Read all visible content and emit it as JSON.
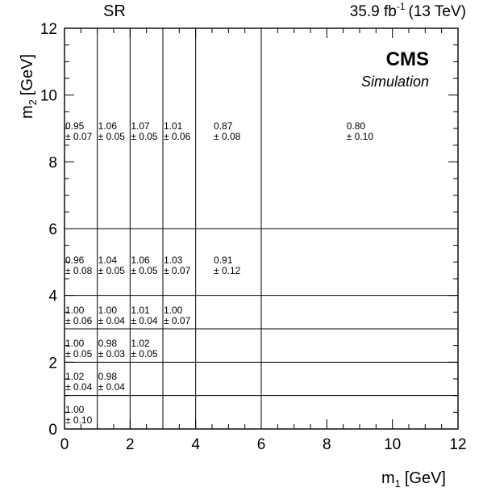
{
  "header": {
    "left_label": "SR",
    "lumi_value": "35.9 fb",
    "lumi_exp": "-1",
    "energy": "(13 TeV)"
  },
  "branding": {
    "experiment": "CMS",
    "tag": "Simulation"
  },
  "chart_data": {
    "type": "heatmap",
    "title": "",
    "xlabel_main": "m",
    "xlabel_sub": "1",
    "xlabel_unit": "[GeV]",
    "ylabel_main": "m",
    "ylabel_sub": "2",
    "ylabel_unit": "[GeV]",
    "xlim": [
      0,
      12
    ],
    "ylim": [
      0,
      12
    ],
    "x_ticks": [
      "0",
      "2",
      "4",
      "6",
      "8",
      "10",
      "12"
    ],
    "y_ticks": [
      "0",
      "2",
      "4",
      "6",
      "8",
      "10",
      "12"
    ],
    "x_bin_edges": [
      0,
      1,
      2,
      3,
      4,
      6,
      12
    ],
    "y_bin_edges": [
      0,
      1,
      2,
      3,
      4,
      6,
      12
    ],
    "cells": [
      {
        "x": [
          0,
          1
        ],
        "y": [
          0,
          1
        ],
        "value": "1.00",
        "error": "± 0.10"
      },
      {
        "x": [
          0,
          1
        ],
        "y": [
          1,
          2
        ],
        "value": "1.02",
        "error": "± 0.04"
      },
      {
        "x": [
          1,
          2
        ],
        "y": [
          1,
          2
        ],
        "value": "0.98",
        "error": "± 0.04"
      },
      {
        "x": [
          0,
          1
        ],
        "y": [
          2,
          3
        ],
        "value": "1.00",
        "error": "± 0.05"
      },
      {
        "x": [
          1,
          2
        ],
        "y": [
          2,
          3
        ],
        "value": "0.98",
        "error": "± 0.03"
      },
      {
        "x": [
          2,
          3
        ],
        "y": [
          2,
          3
        ],
        "value": "1.02",
        "error": "± 0.05"
      },
      {
        "x": [
          0,
          1
        ],
        "y": [
          3,
          4
        ],
        "value": "1.00",
        "error": "± 0.06"
      },
      {
        "x": [
          1,
          2
        ],
        "y": [
          3,
          4
        ],
        "value": "1.00",
        "error": "± 0.04"
      },
      {
        "x": [
          2,
          3
        ],
        "y": [
          3,
          4
        ],
        "value": "1.01",
        "error": "± 0.04"
      },
      {
        "x": [
          3,
          4
        ],
        "y": [
          3,
          4
        ],
        "value": "1.00",
        "error": "± 0.07"
      },
      {
        "x": [
          0,
          1
        ],
        "y": [
          4,
          6
        ],
        "value": "0.96",
        "error": "± 0.08"
      },
      {
        "x": [
          1,
          2
        ],
        "y": [
          4,
          6
        ],
        "value": "1.04",
        "error": "± 0.05"
      },
      {
        "x": [
          2,
          3
        ],
        "y": [
          4,
          6
        ],
        "value": "1.06",
        "error": "± 0.05"
      },
      {
        "x": [
          3,
          4
        ],
        "y": [
          4,
          6
        ],
        "value": "1.03",
        "error": "± 0.07"
      },
      {
        "x": [
          4,
          6
        ],
        "y": [
          4,
          6
        ],
        "value": "0.91",
        "error": "± 0.12"
      },
      {
        "x": [
          0,
          1
        ],
        "y": [
          6,
          12
        ],
        "value": "0.95",
        "error": "± 0.07"
      },
      {
        "x": [
          1,
          2
        ],
        "y": [
          6,
          12
        ],
        "value": "1.06",
        "error": "± 0.05"
      },
      {
        "x": [
          2,
          3
        ],
        "y": [
          6,
          12
        ],
        "value": "1.07",
        "error": "± 0.05"
      },
      {
        "x": [
          3,
          4
        ],
        "y": [
          6,
          12
        ],
        "value": "1.01",
        "error": "± 0.06"
      },
      {
        "x": [
          4,
          6
        ],
        "y": [
          6,
          12
        ],
        "value": "0.87",
        "error": "± 0.08"
      },
      {
        "x": [
          6,
          12
        ],
        "y": [
          6,
          12
        ],
        "value": "0.80",
        "error": "± 0.10"
      }
    ],
    "grid": false,
    "legend": "none"
  }
}
